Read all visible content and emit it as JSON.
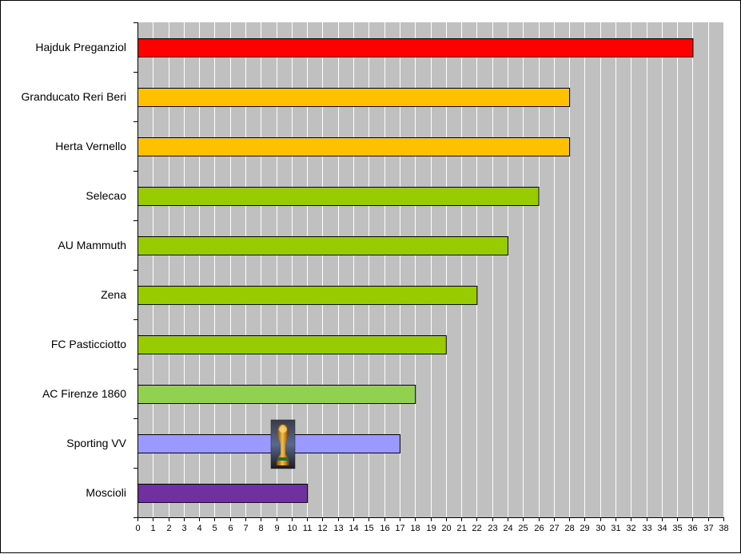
{
  "chart_data": {
    "type": "bar",
    "orientation": "horizontal",
    "categories": [
      "Hajduk Preganziol",
      "Granducato Reri Beri",
      "Herta Vernello",
      "Selecao",
      "AU Mammuth",
      "Zena",
      "FC Pasticciotto",
      "AC Firenze 1860",
      "Sporting VV",
      "Moscioli"
    ],
    "values": [
      36,
      28,
      28,
      26,
      24,
      22,
      20,
      18,
      17,
      11
    ],
    "bar_colors": [
      "#ff0000",
      "#ffc000",
      "#ffc000",
      "#99cc00",
      "#99cc00",
      "#99cc00",
      "#99cc00",
      "#92d050",
      "#9999ff",
      "#7030a0"
    ],
    "xlim": [
      0,
      38
    ],
    "x_ticks": [
      0,
      1,
      2,
      3,
      4,
      5,
      6,
      7,
      8,
      9,
      10,
      11,
      12,
      13,
      14,
      15,
      16,
      17,
      18,
      19,
      20,
      21,
      22,
      23,
      24,
      25,
      26,
      27,
      28,
      29,
      30,
      31,
      32,
      33,
      34,
      35,
      36,
      37,
      38
    ],
    "grid": "vertical",
    "plot_background": "#c0c0c0",
    "gridline_color": "#ffffff",
    "title": "",
    "xlabel": "",
    "ylabel": "",
    "legend": "none",
    "trophy_icon": "world-cup-trophy-icon"
  }
}
